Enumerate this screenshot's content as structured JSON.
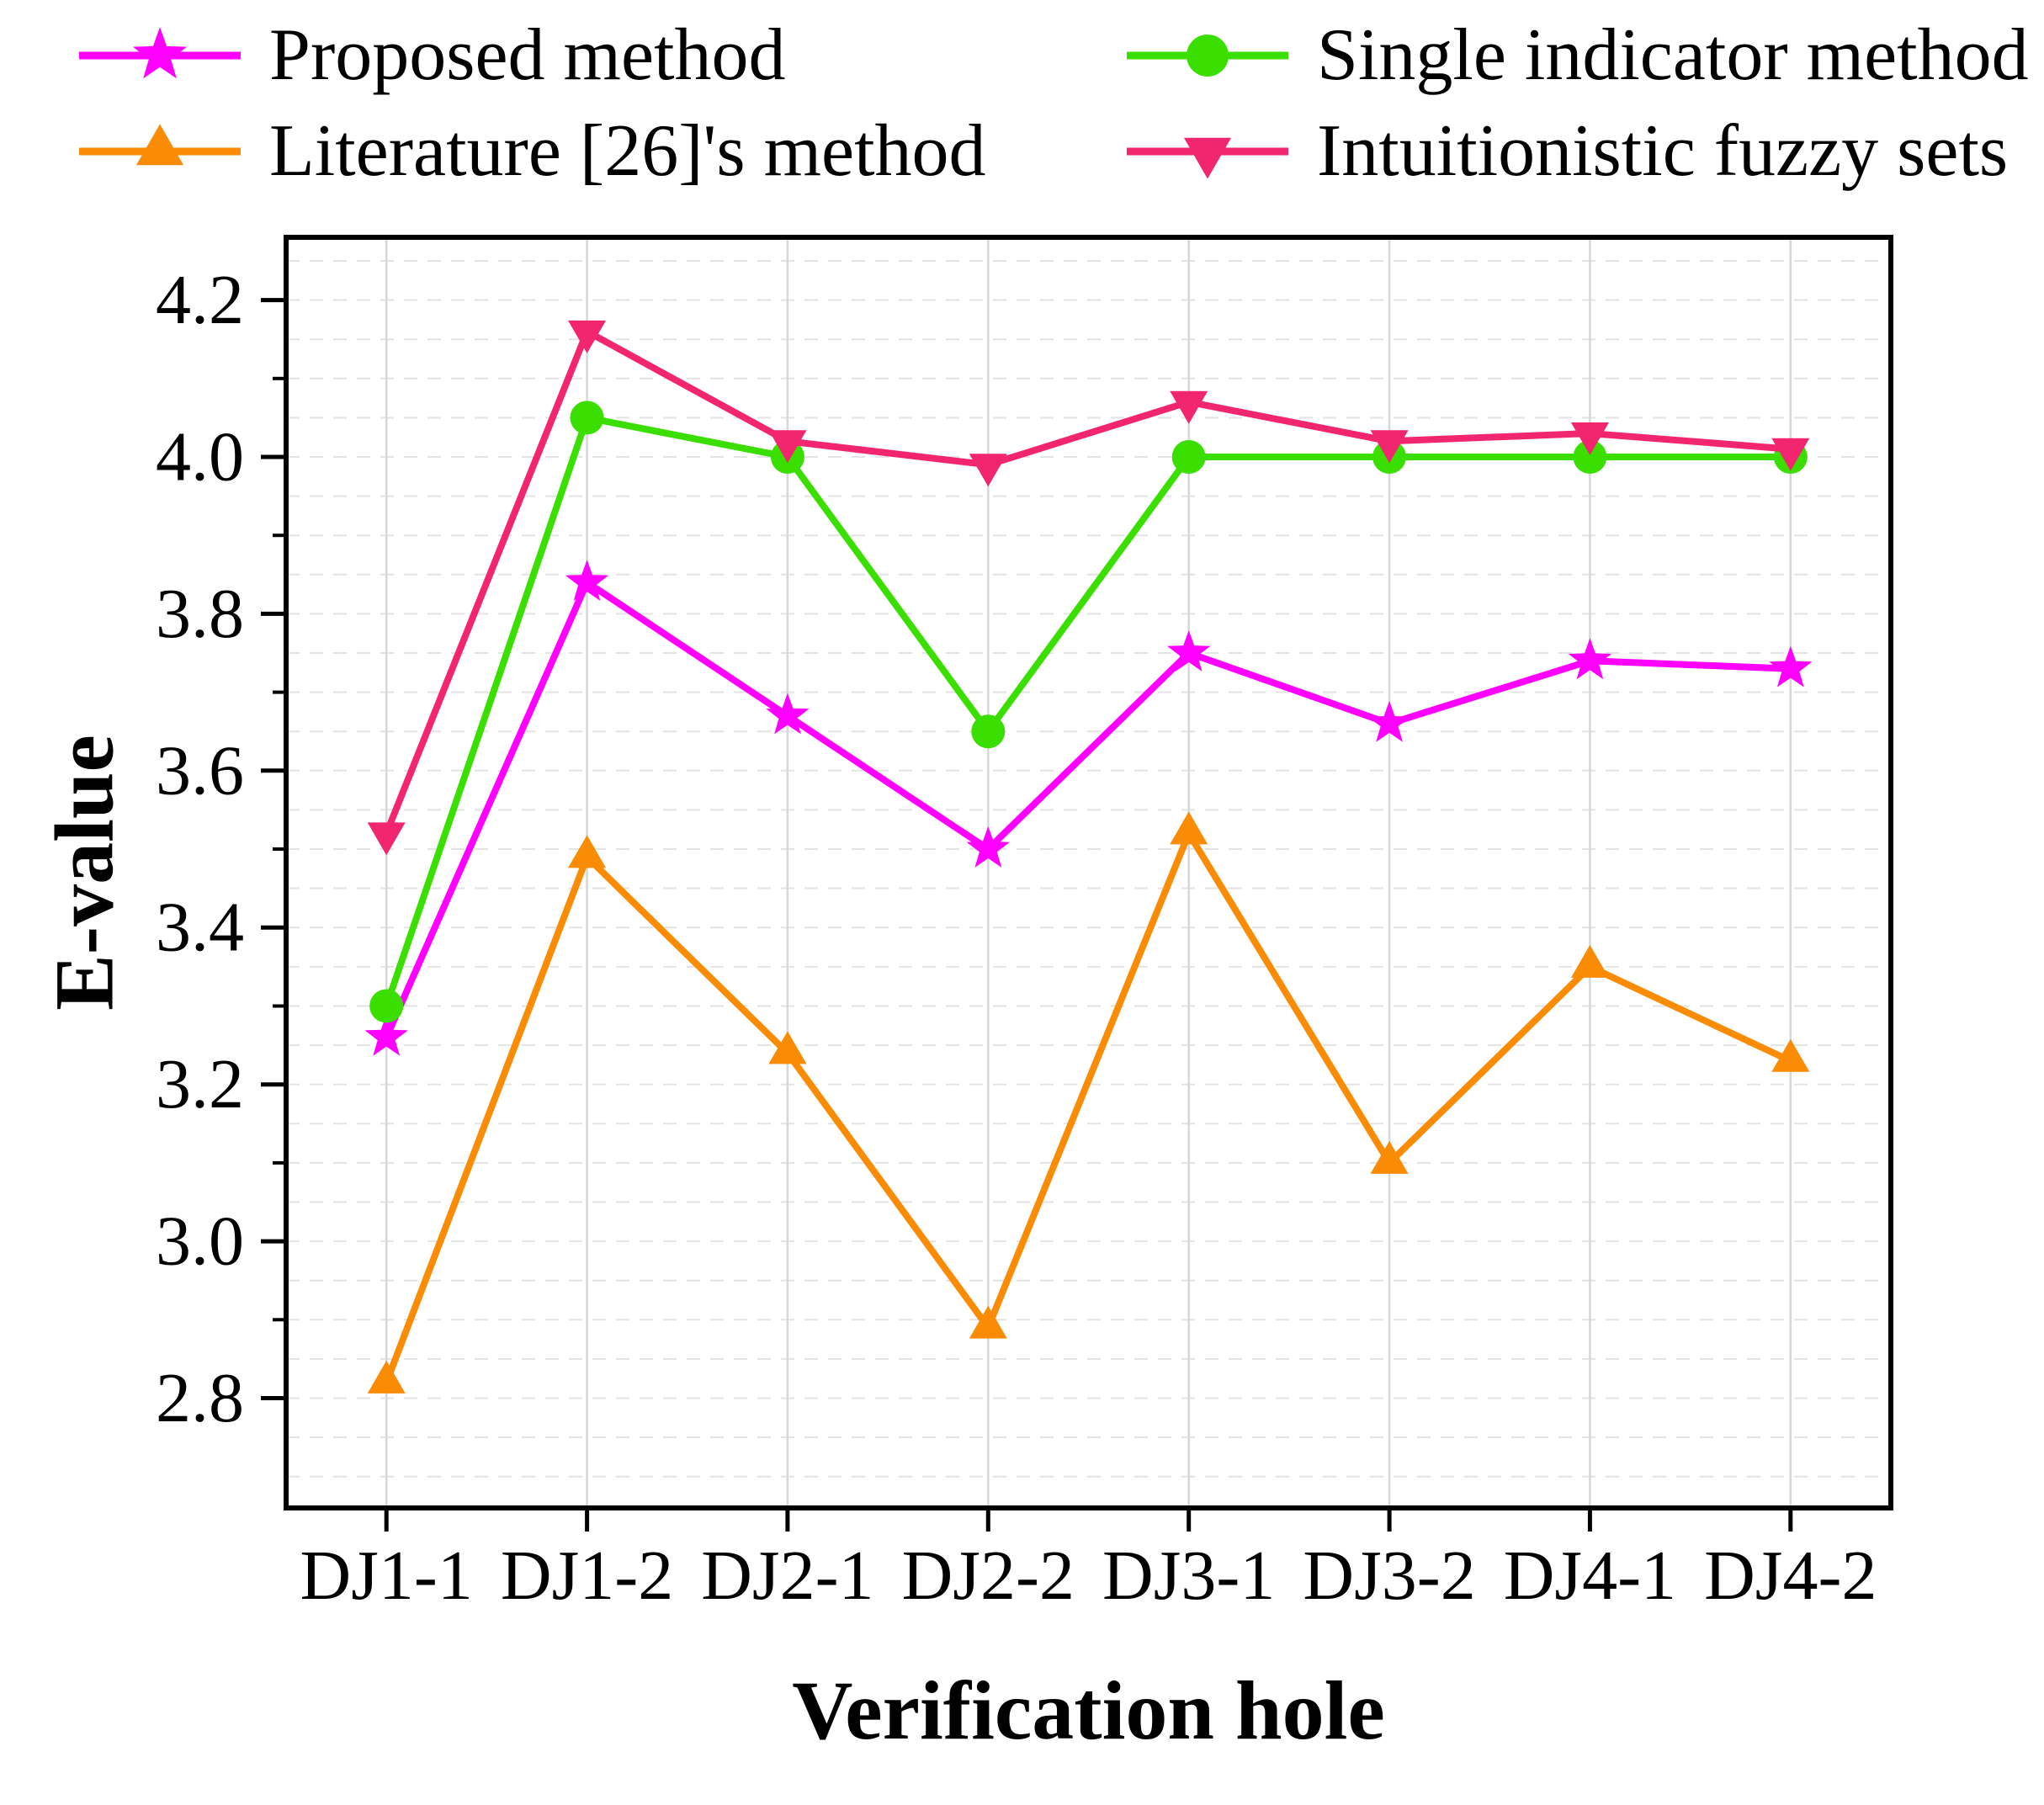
{
  "chart_data": {
    "type": "line",
    "title": "",
    "xlabel": "Verification hole",
    "ylabel": "E-value",
    "categories": [
      "DJ1-1",
      "DJ1-2",
      "DJ2-1",
      "DJ2-2",
      "DJ3-1",
      "DJ3-2",
      "DJ4-1",
      "DJ4-2"
    ],
    "ylim": [
      2.66,
      4.28
    ],
    "yticks": [
      2.8,
      3.0,
      3.2,
      3.4,
      3.6,
      3.8,
      4.0,
      4.2
    ],
    "grid": true,
    "legend_position": "top",
    "series": [
      {
        "name": "Proposed method",
        "color": "#FF00FF",
        "marker": "star",
        "values": [
          3.26,
          3.84,
          3.67,
          3.5,
          3.75,
          3.66,
          3.74,
          3.73
        ]
      },
      {
        "name": "Single indicator method",
        "color": "#3ADF00",
        "marker": "circle",
        "values": [
          3.3,
          4.05,
          4.0,
          3.65,
          4.0,
          4.0,
          4.0,
          4.0
        ]
      },
      {
        "name": "Literature [26]'s method",
        "color": "#FA8B05",
        "marker": "triangle-up",
        "values": [
          2.82,
          3.49,
          3.24,
          2.89,
          3.52,
          3.1,
          3.35,
          3.23
        ]
      },
      {
        "name": "Intuitionistic fuzzy sets",
        "color": "#F2266E",
        "marker": "triangle-down",
        "values": [
          3.52,
          4.16,
          4.02,
          3.99,
          4.07,
          4.02,
          4.03,
          4.01
        ]
      }
    ]
  }
}
